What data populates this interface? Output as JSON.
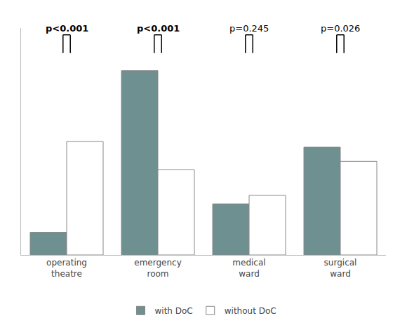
{
  "chart_data": {
    "type": "bar",
    "categories": [
      "operating\ntheatre",
      "emergency\nroom",
      "medical\nward",
      "surgical\nward"
    ],
    "series": [
      {
        "name": "with DoC",
        "color": "#6e9090",
        "values": [
          8,
          65,
          18,
          38
        ]
      },
      {
        "name": "without DoC",
        "color": "#ffffff",
        "values": [
          40,
          30,
          21,
          33
        ]
      }
    ],
    "ylim": [
      0,
      80
    ],
    "yticks": [],
    "grid": false,
    "tick_labels": "x",
    "legend": "bottom",
    "annotations": [
      {
        "category": "operating\ntheatre",
        "text": "p<0.001",
        "bold": true
      },
      {
        "category": "emergency\nroom",
        "text": "p<0.001",
        "bold": true
      },
      {
        "category": "medical\nward",
        "text": "p=0.245",
        "bold": false
      },
      {
        "category": "surgical\nward",
        "text": "p=0.026",
        "bold": false
      }
    ]
  }
}
